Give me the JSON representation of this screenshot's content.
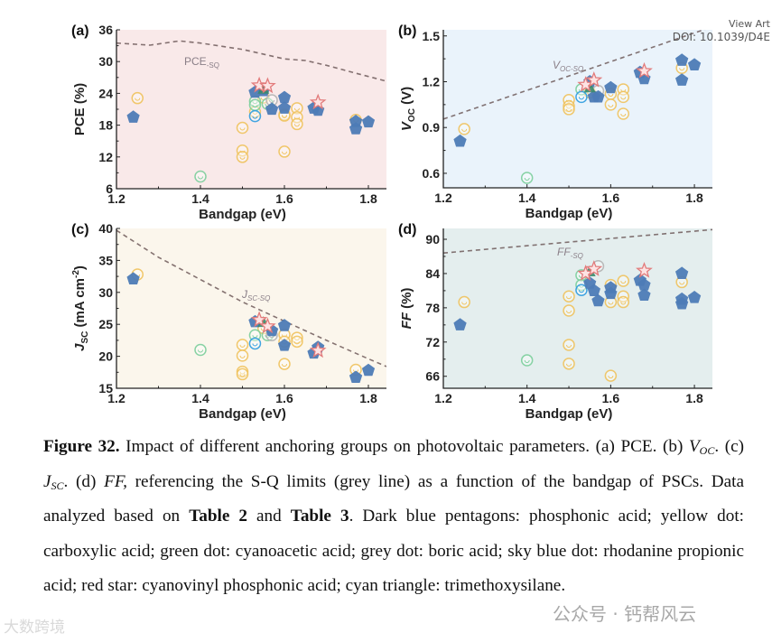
{
  "watermarks": {
    "view_article": "View Art",
    "doi": "DOI: 10.1039/D4E",
    "wechat": "公众号 · 钙帮风云",
    "bottom_left": "大数跨境"
  },
  "colors": {
    "phosphonic": "#4d7bb6",
    "carboxylic": "#f0c35e",
    "cyanoacetic": "#7ccf9c",
    "boric": "#b4b4b4",
    "rhodanine": "#2f9de0",
    "cyanovinyl": "#e27b7b",
    "silane": "#3a8a6c",
    "sq_line": "#6e5a5a"
  },
  "chart_data": [
    {
      "type": "scatter",
      "panel": "(a)",
      "xlabel": "Bandgap (eV)",
      "ylabel": [
        {
          "t": "PCE (%)"
        }
      ],
      "xlim": [
        1.2,
        1.843
      ],
      "ylim": [
        6,
        36
      ],
      "xticks": [
        "1.2",
        "1.4",
        "1.6",
        "1.8"
      ],
      "yticks": [
        "6",
        "12",
        "18",
        "24",
        "30",
        "36"
      ],
      "background": "#f9e9e9",
      "sq_label": {
        "main": "PCE",
        "sub": "-SQ",
        "italic": false
      },
      "sq_line": [
        [
          1.2,
          33.5
        ],
        [
          1.28,
          33.1
        ],
        [
          1.35,
          33.9
        ],
        [
          1.4,
          33.5
        ],
        [
          1.5,
          32.3
        ],
        [
          1.6,
          30.5
        ],
        [
          1.65,
          30.2
        ],
        [
          1.7,
          29.3
        ],
        [
          1.77,
          27.8
        ],
        [
          1.843,
          26.3
        ]
      ],
      "series": [
        {
          "marker": "pentagon",
          "color_key": "phosphonic",
          "points": [
            [
              1.24,
              19.5
            ],
            [
              1.53,
              24.2
            ],
            [
              1.55,
              24.5
            ],
            [
              1.57,
              21
            ],
            [
              1.6,
              23.2
            ],
            [
              1.6,
              21.2
            ],
            [
              1.67,
              21.2
            ],
            [
              1.68,
              20.8
            ],
            [
              1.77,
              17.3
            ],
            [
              1.77,
              18.7
            ],
            [
              1.8,
              18.6
            ]
          ]
        },
        {
          "marker": "circle",
          "color_key": "carboxylic",
          "points": [
            [
              1.25,
              23.1
            ],
            [
              1.5,
              17.5
            ],
            [
              1.5,
              13.2
            ],
            [
              1.5,
              12
            ],
            [
              1.53,
              20.5
            ],
            [
              1.55,
              23.2
            ],
            [
              1.6,
              20
            ],
            [
              1.6,
              19.8
            ],
            [
              1.6,
              13
            ],
            [
              1.63,
              21.2
            ],
            [
              1.63,
              19.5
            ],
            [
              1.63,
              18.2
            ],
            [
              1.77,
              19
            ]
          ]
        },
        {
          "marker": "circle",
          "color_key": "cyanoacetic",
          "points": [
            [
              1.4,
              8.3
            ],
            [
              1.53,
              22.5
            ],
            [
              1.53,
              21.8
            ],
            [
              1.56,
              22
            ]
          ]
        },
        {
          "marker": "circle",
          "color_key": "boric",
          "points": [
            [
              1.57,
              22.7
            ]
          ]
        },
        {
          "marker": "circle",
          "color_key": "rhodanine",
          "points": [
            [
              1.53,
              19.7
            ]
          ]
        },
        {
          "marker": "star",
          "color_key": "cyanovinyl",
          "points": [
            [
              1.54,
              25.5
            ],
            [
              1.56,
              25.4
            ],
            [
              1.68,
              22.3
            ]
          ]
        },
        {
          "marker": "triangle",
          "color_key": "silane",
          "points": [
            [
              1.55,
              24.8
            ]
          ]
        }
      ]
    },
    {
      "type": "scatter",
      "panel": "(b)",
      "xlabel": "Bandgap (eV)",
      "ylabel": [
        {
          "t": "V",
          "i": true
        },
        {
          "t": "OC",
          "sub": true
        },
        {
          "t": " (V)"
        }
      ],
      "xlim": [
        1.2,
        1.843
      ],
      "ylim": [
        0.505,
        1.54
      ],
      "xticks": [
        "1.2",
        "1.4",
        "1.6",
        "1.8"
      ],
      "yticks": [
        "0.6",
        "0.9",
        "1.2",
        "1.5"
      ],
      "background": "#eaf3fb",
      "sq_label": {
        "main": "V",
        "sub": "OC-SQ",
        "italic": true
      },
      "sq_line": [
        [
          1.2,
          0.955
        ],
        [
          1.843,
          1.56
        ]
      ],
      "series": [
        {
          "marker": "pentagon",
          "color_key": "phosphonic",
          "points": [
            [
              1.24,
              0.81
            ],
            [
              1.55,
              1.2
            ],
            [
              1.56,
              1.1
            ],
            [
              1.57,
              1.1
            ],
            [
              1.6,
              1.16
            ],
            [
              1.67,
              1.26
            ],
            [
              1.68,
              1.22
            ],
            [
              1.77,
              1.34
            ],
            [
              1.77,
              1.21
            ],
            [
              1.8,
              1.31
            ]
          ]
        },
        {
          "marker": "circle",
          "color_key": "carboxylic",
          "points": [
            [
              1.25,
              0.89
            ],
            [
              1.5,
              1.08
            ],
            [
              1.5,
              1.04
            ],
            [
              1.5,
              1.02
            ],
            [
              1.55,
              1.13
            ],
            [
              1.6,
              1.12
            ],
            [
              1.6,
              1.05
            ],
            [
              1.63,
              1.15
            ],
            [
              1.63,
              1.1
            ],
            [
              1.63,
              0.99
            ],
            [
              1.77,
              1.29
            ]
          ]
        },
        {
          "marker": "circle",
          "color_key": "cyanoacetic",
          "points": [
            [
              1.4,
              0.57
            ],
            [
              1.53,
              1.15
            ]
          ]
        },
        {
          "marker": "circle",
          "color_key": "boric",
          "points": [
            [
              1.57,
              1.14
            ]
          ]
        },
        {
          "marker": "circle",
          "color_key": "rhodanine",
          "points": [
            [
              1.53,
              1.1
            ]
          ]
        },
        {
          "marker": "star",
          "color_key": "cyanovinyl",
          "points": [
            [
              1.54,
              1.18
            ],
            [
              1.56,
              1.21
            ],
            [
              1.68,
              1.27
            ]
          ]
        },
        {
          "marker": "triangle",
          "color_key": "silane",
          "points": [
            [
              1.55,
              1.16
            ]
          ]
        }
      ]
    },
    {
      "type": "scatter",
      "panel": "(c)",
      "xlabel": "Bandgap (eV)",
      "ylabel": [
        {
          "t": "J",
          "i": true
        },
        {
          "t": "SC",
          "sub": true
        },
        {
          "t": " (mA cm"
        },
        {
          "t": "-2",
          "sup": true
        },
        {
          "t": ")"
        }
      ],
      "xlim": [
        1.2,
        1.843
      ],
      "ylim": [
        15,
        40
      ],
      "xticks": [
        "1.2",
        "1.4",
        "1.6",
        "1.8"
      ],
      "yticks": [
        "15",
        "20",
        "25",
        "30",
        "35",
        "40"
      ],
      "background": "#fbf6ec",
      "sq_label": {
        "main": "J",
        "sub": "SC-SQ",
        "italic": true
      },
      "sq_line": [
        [
          1.2,
          39.7
        ],
        [
          1.3,
          35.5
        ],
        [
          1.4,
          32
        ],
        [
          1.5,
          28.5
        ],
        [
          1.6,
          25.5
        ],
        [
          1.7,
          22.5
        ],
        [
          1.8,
          19.6
        ],
        [
          1.843,
          18.4
        ]
      ],
      "series": [
        {
          "marker": "pentagon",
          "color_key": "phosphonic",
          "points": [
            [
              1.24,
              32.1
            ],
            [
              1.53,
              25.4
            ],
            [
              1.57,
              24
            ],
            [
              1.6,
              24.8
            ],
            [
              1.6,
              21.7
            ],
            [
              1.67,
              20.5
            ],
            [
              1.68,
              21.4
            ],
            [
              1.77,
              16.7
            ],
            [
              1.8,
              17.8
            ]
          ]
        },
        {
          "marker": "circle",
          "color_key": "carboxylic",
          "points": [
            [
              1.25,
              32.8
            ],
            [
              1.5,
              21.8
            ],
            [
              1.5,
              20.1
            ],
            [
              1.5,
              17.6
            ],
            [
              1.5,
              17.2
            ],
            [
              1.55,
              24.4
            ],
            [
              1.6,
              23.4
            ],
            [
              1.6,
              22.3
            ],
            [
              1.6,
              18.8
            ],
            [
              1.63,
              22.9
            ],
            [
              1.63,
              22.3
            ],
            [
              1.77,
              17.9
            ]
          ]
        },
        {
          "marker": "circle",
          "color_key": "cyanoacetic",
          "points": [
            [
              1.4,
              21
            ],
            [
              1.53,
              23.3
            ],
            [
              1.56,
              23.3
            ]
          ]
        },
        {
          "marker": "circle",
          "color_key": "boric",
          "points": [
            [
              1.57,
              23.3
            ]
          ]
        },
        {
          "marker": "circle",
          "color_key": "rhodanine",
          "points": [
            [
              1.53,
              22
            ]
          ]
        },
        {
          "marker": "star",
          "color_key": "cyanovinyl",
          "points": [
            [
              1.54,
              25.7
            ],
            [
              1.56,
              24.7
            ],
            [
              1.68,
              20.9
            ]
          ]
        },
        {
          "marker": "triangle",
          "color_key": "silane",
          "points": [
            [
              1.55,
              25.3
            ]
          ]
        }
      ]
    },
    {
      "type": "scatter",
      "panel": "(d)",
      "xlabel": "Bandgap (eV)",
      "ylabel": [
        {
          "t": "FF",
          "i": true
        },
        {
          "t": " (%)"
        }
      ],
      "xlim": [
        1.2,
        1.843
      ],
      "ylim": [
        63.9,
        91.9
      ],
      "xticks": [
        "1.2",
        "1.4",
        "1.6",
        "1.8"
      ],
      "yticks": [
        "66",
        "72",
        "78",
        "84",
        "90"
      ],
      "background": "#e4eeee",
      "sq_label": {
        "main": "FF",
        "sub": "-SQ",
        "italic": true
      },
      "sq_line": [
        [
          1.2,
          87.6
        ],
        [
          1.843,
          91.7
        ]
      ],
      "series": [
        {
          "marker": "pentagon",
          "color_key": "phosphonic",
          "points": [
            [
              1.24,
              75
            ],
            [
              1.55,
              82.3
            ],
            [
              1.56,
              81
            ],
            [
              1.57,
              79.2
            ],
            [
              1.6,
              81.5
            ],
            [
              1.6,
              80.5
            ],
            [
              1.67,
              82.8
            ],
            [
              1.68,
              82
            ],
            [
              1.68,
              80.2
            ],
            [
              1.77,
              84
            ],
            [
              1.77,
              79.5
            ],
            [
              1.77,
              78.7
            ],
            [
              1.8,
              79.8
            ]
          ]
        },
        {
          "marker": "circle",
          "color_key": "carboxylic",
          "points": [
            [
              1.25,
              79
            ],
            [
              1.5,
              80
            ],
            [
              1.5,
              77.5
            ],
            [
              1.5,
              71.5
            ],
            [
              1.5,
              68.2
            ],
            [
              1.6,
              82
            ],
            [
              1.6,
              79
            ],
            [
              1.6,
              66.1
            ],
            [
              1.63,
              82.7
            ],
            [
              1.63,
              80
            ],
            [
              1.63,
              79
            ],
            [
              1.77,
              82.5
            ]
          ]
        },
        {
          "marker": "circle",
          "color_key": "cyanoacetic",
          "points": [
            [
              1.4,
              68.8
            ],
            [
              1.53,
              83.7
            ],
            [
              1.53,
              82
            ]
          ]
        },
        {
          "marker": "circle",
          "color_key": "boric",
          "points": [
            [
              1.57,
              85.3
            ]
          ]
        },
        {
          "marker": "circle",
          "color_key": "rhodanine",
          "points": [
            [
              1.53,
              81.1
            ]
          ]
        },
        {
          "marker": "star",
          "color_key": "cyanovinyl",
          "points": [
            [
              1.54,
              84
            ],
            [
              1.56,
              84.8
            ],
            [
              1.68,
              84.5
            ]
          ]
        },
        {
          "marker": "triangle",
          "color_key": "silane",
          "points": [
            [
              1.55,
              84.3
            ]
          ]
        }
      ]
    }
  ],
  "caption": [
    {
      "t": "Figure 32.",
      "b": true
    },
    {
      "t": " Impact of different anchoring groups on photovoltaic parameters. (a) PCE. (b) "
    },
    {
      "t": "V",
      "i": true
    },
    {
      "t": "OC",
      "i": true,
      "sub": true
    },
    {
      "t": ". (c) "
    },
    {
      "t": "J",
      "i": true
    },
    {
      "t": "SC",
      "i": true,
      "sub": true
    },
    {
      "t": ". (d) "
    },
    {
      "t": "FF,",
      "i": true
    },
    {
      "t": " referencing the S-Q limits (grey line) as a function of the bandgap of PSCs. Data analyzed based on "
    },
    {
      "t": "Table 2",
      "b": true
    },
    {
      "t": " and "
    },
    {
      "t": "Table 3",
      "b": true
    },
    {
      "t": ". Dark blue pentagons: phosphonic acid; yellow dot: carboxylic acid; green dot: cyanoacetic acid; grey dot: boric acid; sky blue dot: rhodanine propionic acid; red star: cyanovinyl phosphonic acid; cyan triangle: trimethoxysilane."
    }
  ]
}
